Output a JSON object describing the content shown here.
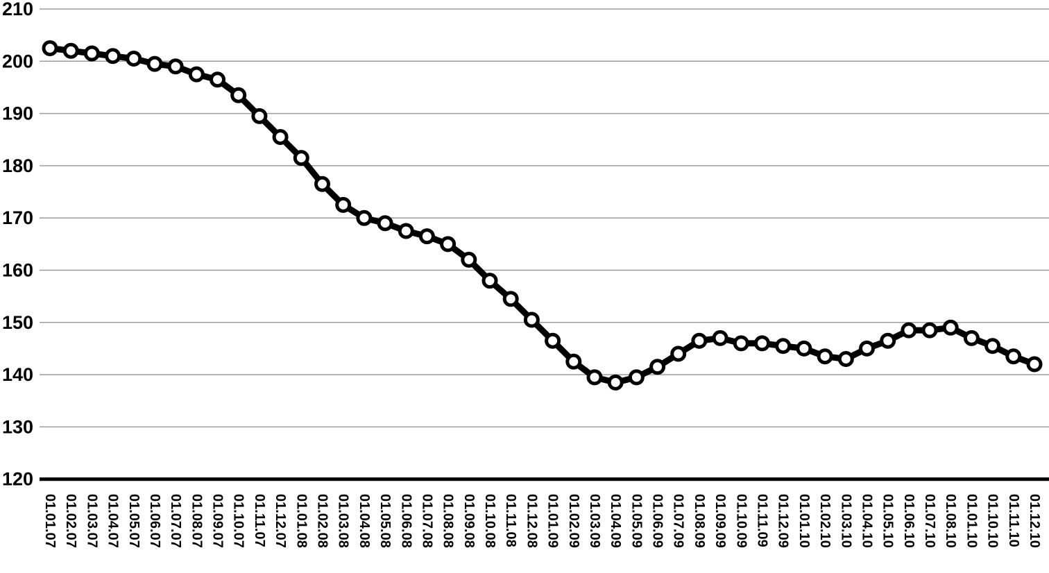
{
  "chart_data": {
    "type": "line",
    "title": "",
    "xlabel": "",
    "ylabel": "",
    "categories": [
      "01.01.07",
      "01.02.07",
      "01.03.07",
      "01.04.07",
      "01.05.07",
      "01.06.07",
      "01.07.07",
      "01.08.07",
      "01.09.07",
      "01.10.07",
      "01.11.07",
      "01.12.07",
      "01.01.08",
      "01.02.08",
      "01.03.08",
      "01.04.08",
      "01.05.08",
      "01.06.08",
      "01.07.08",
      "01.08.08",
      "01.09.08",
      "01.10.08",
      "01.11.08",
      "01.12.08",
      "01.01.09",
      "01.02.09",
      "01.03.09",
      "01.04.09",
      "01.05.09",
      "01.06.09",
      "01.07.09",
      "01.08.09",
      "01.09.09",
      "01.10.09",
      "01.11.09",
      "01.12.09",
      "01.01.10",
      "01.02.10",
      "01.03.10",
      "01.04.10",
      "01.05.10",
      "01.06.10",
      "01.07.10",
      "01.08.10",
      "01.01.10",
      "01.10.10",
      "01.11.10",
      "01.12.10"
    ],
    "series": [
      {
        "name": "index",
        "values": [
          202.5,
          202,
          201.5,
          201,
          200.5,
          199.5,
          199,
          197.5,
          196.5,
          193.5,
          189.5,
          185.5,
          181.5,
          176.5,
          172.5,
          170,
          169,
          167.5,
          166.5,
          165,
          162,
          158,
          154.5,
          150.5,
          146.5,
          142.5,
          139.5,
          138.5,
          139.5,
          141.5,
          144,
          146.5,
          147,
          146,
          146,
          145.5,
          145,
          143.5,
          143,
          145,
          146.5,
          148.5,
          148.5,
          149,
          147,
          145.5,
          143.5,
          142
        ]
      }
    ],
    "ylim": [
      120,
      210
    ],
    "yticks": [
      210,
      200,
      190,
      180,
      170,
      160,
      150,
      140,
      130,
      120
    ],
    "grid": true,
    "legend_position": "none",
    "marker": "circle-white-filled",
    "colors": {
      "line": "#000000",
      "marker_fill": "#ffffff",
      "marker_stroke": "#000000",
      "gridline": "#9b9b9b",
      "axis": "#000000",
      "tick_text": "#000000",
      "background": "#ffffff"
    }
  }
}
